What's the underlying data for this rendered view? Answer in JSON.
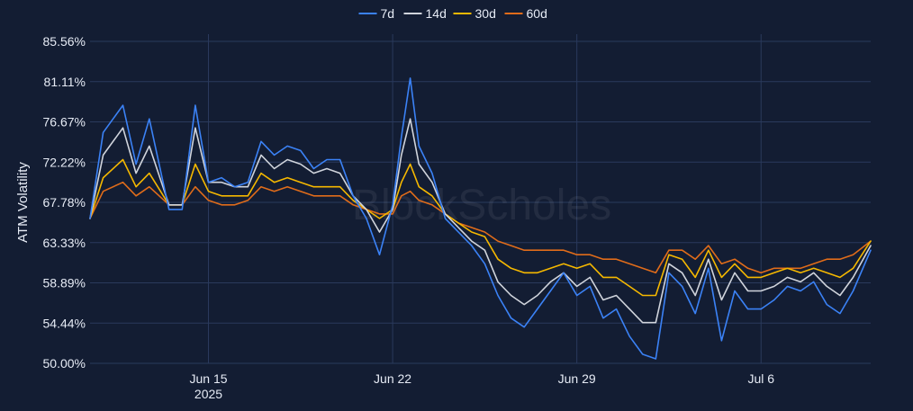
{
  "watermark": "BlockScholes",
  "chart_data": {
    "type": "line",
    "ylabel": "ATM Volatility",
    "y_ticks": [
      "50.00%",
      "54.44%",
      "58.89%",
      "63.33%",
      "67.78%",
      "72.22%",
      "76.67%",
      "81.11%",
      "85.56%"
    ],
    "ylim": [
      50.0,
      85.56
    ],
    "x_ticks": [
      {
        "date": "2025-06-15",
        "label": "Jun 15",
        "sublabel": "2025"
      },
      {
        "date": "2025-06-22",
        "label": "Jun 22",
        "sublabel": ""
      },
      {
        "date": "2025-06-29",
        "label": "Jun 29",
        "sublabel": ""
      },
      {
        "date": "2025-07-06",
        "label": "Jul 6",
        "sublabel": ""
      }
    ],
    "xlim": [
      "2025-06-10T12:00",
      "2025-07-10T04:00"
    ],
    "legend_position": "top-center",
    "grid": true,
    "series": [
      {
        "name": "7d",
        "color": "#3b82f6",
        "x": [
          "2025-06-10T12:00",
          "2025-06-11T00:00",
          "2025-06-11T18:00",
          "2025-06-12T06:00",
          "2025-06-12T18:00",
          "2025-06-13T12:00",
          "2025-06-14T00:00",
          "2025-06-14T12:00",
          "2025-06-15T00:00",
          "2025-06-15T12:00",
          "2025-06-16T00:00",
          "2025-06-16T12:00",
          "2025-06-17T00:00",
          "2025-06-17T12:00",
          "2025-06-18T00:00",
          "2025-06-18T12:00",
          "2025-06-19T00:00",
          "2025-06-19T12:00",
          "2025-06-20T00:00",
          "2025-06-20T12:00",
          "2025-06-21T00:00",
          "2025-06-21T12:00",
          "2025-06-22T00:00",
          "2025-06-22T08:00",
          "2025-06-22T16:00",
          "2025-06-23T00:00",
          "2025-06-23T12:00",
          "2025-06-24T00:00",
          "2025-06-24T12:00",
          "2025-06-25T00:00",
          "2025-06-25T12:00",
          "2025-06-26T00:00",
          "2025-06-26T12:00",
          "2025-06-27T00:00",
          "2025-06-27T12:00",
          "2025-06-28T00:00",
          "2025-06-28T12:00",
          "2025-06-29T00:00",
          "2025-06-29T12:00",
          "2025-06-30T00:00",
          "2025-06-30T12:00",
          "2025-07-01T00:00",
          "2025-07-01T12:00",
          "2025-07-02T00:00",
          "2025-07-02T12:00",
          "2025-07-03T00:00",
          "2025-07-03T12:00",
          "2025-07-04T00:00",
          "2025-07-04T12:00",
          "2025-07-05T00:00",
          "2025-07-05T12:00",
          "2025-07-06T00:00",
          "2025-07-06T12:00",
          "2025-07-07T00:00",
          "2025-07-07T12:00",
          "2025-07-08T00:00",
          "2025-07-08T12:00",
          "2025-07-09T00:00",
          "2025-07-09T12:00",
          "2025-07-10T04:00"
        ],
        "y": [
          66.0,
          75.5,
          78.5,
          72.0,
          77.0,
          67.0,
          67.0,
          78.5,
          70.0,
          70.5,
          69.5,
          70.0,
          74.5,
          73.0,
          74.0,
          73.5,
          71.5,
          72.5,
          72.5,
          68.5,
          66.0,
          62.0,
          67.5,
          75.0,
          81.5,
          74.0,
          71.0,
          66.0,
          64.5,
          63.0,
          61.0,
          57.5,
          55.0,
          54.0,
          56.0,
          58.0,
          60.0,
          57.5,
          58.5,
          55.0,
          56.0,
          53.0,
          51.0,
          50.5,
          60.0,
          58.5,
          55.5,
          60.5,
          52.5,
          58.0,
          56.0,
          56.0,
          57.0,
          58.5,
          58.0,
          59.0,
          56.5,
          55.5,
          58.0,
          62.5
        ]
      },
      {
        "name": "14d",
        "color": "#d0d4dc",
        "x": [
          "2025-06-10T12:00",
          "2025-06-11T00:00",
          "2025-06-11T18:00",
          "2025-06-12T06:00",
          "2025-06-12T18:00",
          "2025-06-13T12:00",
          "2025-06-14T00:00",
          "2025-06-14T12:00",
          "2025-06-15T00:00",
          "2025-06-15T12:00",
          "2025-06-16T00:00",
          "2025-06-16T12:00",
          "2025-06-17T00:00",
          "2025-06-17T12:00",
          "2025-06-18T00:00",
          "2025-06-18T12:00",
          "2025-06-19T00:00",
          "2025-06-19T12:00",
          "2025-06-20T00:00",
          "2025-06-20T12:00",
          "2025-06-21T00:00",
          "2025-06-21T12:00",
          "2025-06-22T00:00",
          "2025-06-22T08:00",
          "2025-06-22T16:00",
          "2025-06-23T00:00",
          "2025-06-23T12:00",
          "2025-06-24T00:00",
          "2025-06-24T12:00",
          "2025-06-25T00:00",
          "2025-06-25T12:00",
          "2025-06-26T00:00",
          "2025-06-26T12:00",
          "2025-06-27T00:00",
          "2025-06-27T12:00",
          "2025-06-28T00:00",
          "2025-06-28T12:00",
          "2025-06-29T00:00",
          "2025-06-29T12:00",
          "2025-06-30T00:00",
          "2025-06-30T12:00",
          "2025-07-01T00:00",
          "2025-07-01T12:00",
          "2025-07-02T00:00",
          "2025-07-02T12:00",
          "2025-07-03T00:00",
          "2025-07-03T12:00",
          "2025-07-04T00:00",
          "2025-07-04T12:00",
          "2025-07-05T00:00",
          "2025-07-05T12:00",
          "2025-07-06T00:00",
          "2025-07-06T12:00",
          "2025-07-07T00:00",
          "2025-07-07T12:00",
          "2025-07-08T00:00",
          "2025-07-08T12:00",
          "2025-07-09T00:00",
          "2025-07-09T12:00",
          "2025-07-10T04:00"
        ],
        "y": [
          66.0,
          73.0,
          76.0,
          71.0,
          74.0,
          67.5,
          67.5,
          76.0,
          70.0,
          70.0,
          69.5,
          69.5,
          73.0,
          71.5,
          72.5,
          72.0,
          71.0,
          71.5,
          71.0,
          68.5,
          67.0,
          64.5,
          67.0,
          73.0,
          77.0,
          72.0,
          70.0,
          66.5,
          65.0,
          63.5,
          62.5,
          59.0,
          57.5,
          56.5,
          57.5,
          59.0,
          60.0,
          58.5,
          59.5,
          57.0,
          57.5,
          56.0,
          54.5,
          54.5,
          61.0,
          60.0,
          57.5,
          61.5,
          57.0,
          60.0,
          58.0,
          58.0,
          58.5,
          59.5,
          59.0,
          60.0,
          58.5,
          57.5,
          59.5,
          63.0
        ]
      },
      {
        "name": "30d",
        "color": "#f5b800",
        "x": [
          "2025-06-10T12:00",
          "2025-06-11T00:00",
          "2025-06-11T18:00",
          "2025-06-12T06:00",
          "2025-06-12T18:00",
          "2025-06-13T12:00",
          "2025-06-14T00:00",
          "2025-06-14T12:00",
          "2025-06-15T00:00",
          "2025-06-15T12:00",
          "2025-06-16T00:00",
          "2025-06-16T12:00",
          "2025-06-17T00:00",
          "2025-06-17T12:00",
          "2025-06-18T00:00",
          "2025-06-18T12:00",
          "2025-06-19T00:00",
          "2025-06-19T12:00",
          "2025-06-20T00:00",
          "2025-06-20T12:00",
          "2025-06-21T00:00",
          "2025-06-21T12:00",
          "2025-06-22T00:00",
          "2025-06-22T08:00",
          "2025-06-22T16:00",
          "2025-06-23T00:00",
          "2025-06-23T12:00",
          "2025-06-24T00:00",
          "2025-06-24T12:00",
          "2025-06-25T00:00",
          "2025-06-25T12:00",
          "2025-06-26T00:00",
          "2025-06-26T12:00",
          "2025-06-27T00:00",
          "2025-06-27T12:00",
          "2025-06-28T00:00",
          "2025-06-28T12:00",
          "2025-06-29T00:00",
          "2025-06-29T12:00",
          "2025-06-30T00:00",
          "2025-06-30T12:00",
          "2025-07-01T00:00",
          "2025-07-01T12:00",
          "2025-07-02T00:00",
          "2025-07-02T12:00",
          "2025-07-03T00:00",
          "2025-07-03T12:00",
          "2025-07-04T00:00",
          "2025-07-04T12:00",
          "2025-07-05T00:00",
          "2025-07-05T12:00",
          "2025-07-06T00:00",
          "2025-07-06T12:00",
          "2025-07-07T00:00",
          "2025-07-07T12:00",
          "2025-07-08T00:00",
          "2025-07-08T12:00",
          "2025-07-09T00:00",
          "2025-07-09T12:00",
          "2025-07-10T04:00"
        ],
        "y": [
          66.0,
          70.5,
          72.5,
          69.5,
          71.0,
          67.5,
          67.5,
          72.0,
          69.0,
          68.5,
          68.5,
          68.5,
          71.0,
          70.0,
          70.5,
          70.0,
          69.5,
          69.5,
          69.5,
          68.0,
          67.0,
          66.0,
          67.0,
          70.0,
          72.0,
          69.5,
          68.5,
          66.5,
          65.5,
          64.5,
          64.0,
          61.5,
          60.5,
          60.0,
          60.0,
          60.5,
          61.0,
          60.5,
          61.0,
          59.5,
          59.5,
          58.5,
          57.5,
          57.5,
          62.0,
          61.5,
          59.5,
          62.5,
          59.5,
          61.0,
          59.5,
          59.5,
          60.0,
          60.5,
          60.0,
          60.5,
          60.0,
          59.5,
          60.5,
          63.5
        ]
      },
      {
        "name": "60d",
        "color": "#e06c1a",
        "x": [
          "2025-06-10T12:00",
          "2025-06-11T00:00",
          "2025-06-11T18:00",
          "2025-06-12T06:00",
          "2025-06-12T18:00",
          "2025-06-13T12:00",
          "2025-06-14T00:00",
          "2025-06-14T12:00",
          "2025-06-15T00:00",
          "2025-06-15T12:00",
          "2025-06-16T00:00",
          "2025-06-16T12:00",
          "2025-06-17T00:00",
          "2025-06-17T12:00",
          "2025-06-18T00:00",
          "2025-06-18T12:00",
          "2025-06-19T00:00",
          "2025-06-19T12:00",
          "2025-06-20T00:00",
          "2025-06-20T12:00",
          "2025-06-21T00:00",
          "2025-06-21T12:00",
          "2025-06-22T00:00",
          "2025-06-22T08:00",
          "2025-06-22T16:00",
          "2025-06-23T00:00",
          "2025-06-23T12:00",
          "2025-06-24T00:00",
          "2025-06-24T12:00",
          "2025-06-25T00:00",
          "2025-06-25T12:00",
          "2025-06-26T00:00",
          "2025-06-26T12:00",
          "2025-06-27T00:00",
          "2025-06-27T12:00",
          "2025-06-28T00:00",
          "2025-06-28T12:00",
          "2025-06-29T00:00",
          "2025-06-29T12:00",
          "2025-06-30T00:00",
          "2025-06-30T12:00",
          "2025-07-01T00:00",
          "2025-07-01T12:00",
          "2025-07-02T00:00",
          "2025-07-02T12:00",
          "2025-07-03T00:00",
          "2025-07-03T12:00",
          "2025-07-04T00:00",
          "2025-07-04T12:00",
          "2025-07-05T00:00",
          "2025-07-05T12:00",
          "2025-07-06T00:00",
          "2025-07-06T12:00",
          "2025-07-07T00:00",
          "2025-07-07T12:00",
          "2025-07-08T00:00",
          "2025-07-08T12:00",
          "2025-07-09T00:00",
          "2025-07-09T12:00",
          "2025-07-10T04:00"
        ],
        "y": [
          66.0,
          69.0,
          70.0,
          68.5,
          69.5,
          67.5,
          67.5,
          69.5,
          68.0,
          67.5,
          67.5,
          68.0,
          69.5,
          69.0,
          69.5,
          69.0,
          68.5,
          68.5,
          68.5,
          67.5,
          67.0,
          66.5,
          66.5,
          68.5,
          69.0,
          68.0,
          67.5,
          66.5,
          65.5,
          65.0,
          64.5,
          63.5,
          63.0,
          62.5,
          62.5,
          62.5,
          62.5,
          62.0,
          62.0,
          61.5,
          61.5,
          61.0,
          60.5,
          60.0,
          62.5,
          62.5,
          61.5,
          63.0,
          61.0,
          61.5,
          60.5,
          60.0,
          60.5,
          60.5,
          60.5,
          61.0,
          61.5,
          61.5,
          62.0,
          63.5
        ]
      }
    ]
  }
}
